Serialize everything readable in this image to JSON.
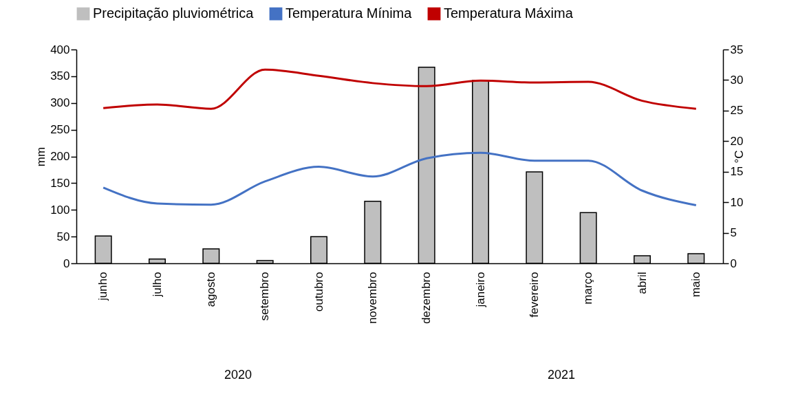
{
  "chart_data": {
    "type": "bar",
    "categories": [
      "junho",
      "julho",
      "agosto",
      "setembro",
      "outubro",
      "novembro",
      "dezembro",
      "janeiro",
      "fevereiro",
      "março",
      "abril",
      "maio"
    ],
    "series": [
      {
        "name": "Precipitação pluviométrica",
        "color": "#bfbfbf",
        "values": [
          51,
          8,
          27,
          5,
          50,
          116,
          367,
          342,
          171,
          95,
          14,
          18
        ]
      },
      {
        "name": "Temperatura Mínima",
        "type": "line",
        "axis": "y2",
        "color": "#4472c4",
        "values": [
          12.4,
          9.8,
          9.6,
          13.4,
          15.8,
          14.2,
          17.2,
          18.1,
          16.8,
          16.8,
          11.9,
          9.5
        ]
      },
      {
        "name": "Temperatura Máxima",
        "type": "line",
        "axis": "y2",
        "color": "#c00000",
        "values": [
          25.4,
          26.0,
          25.3,
          31.7,
          30.7,
          29.5,
          29.0,
          29.9,
          29.6,
          29.7,
          26.6,
          25.3
        ]
      }
    ],
    "ylabel": "mm",
    "y2label": "°C",
    "ylim": [
      0,
      400
    ],
    "yticks": [
      0,
      50,
      100,
      150,
      200,
      250,
      300,
      350,
      400
    ],
    "y2lim": [
      0,
      35
    ],
    "y2ticks": [
      0,
      5,
      10,
      15,
      20,
      25,
      30,
      35
    ],
    "annotations": [
      "2020",
      "2021"
    ],
    "legend": "top",
    "grid": false
  }
}
